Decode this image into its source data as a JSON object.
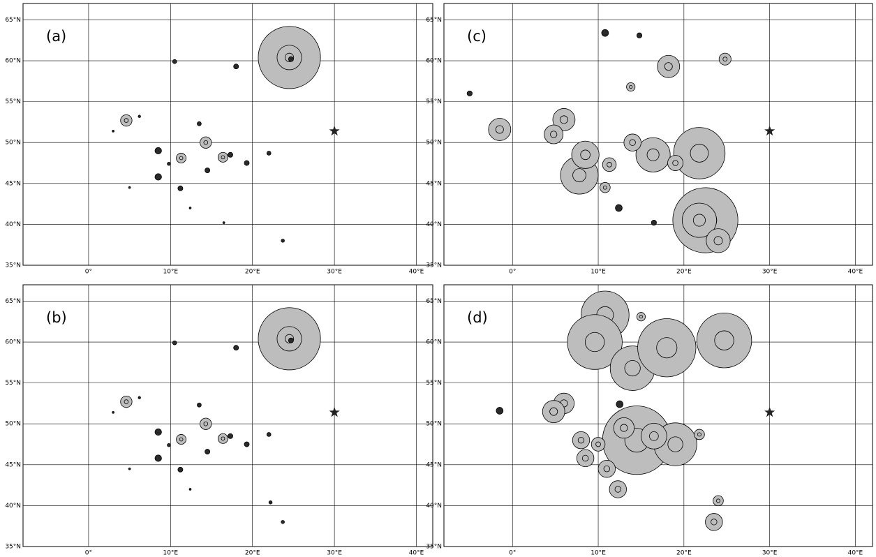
{
  "map": {
    "xlim": [
      -8,
      42
    ],
    "ylim": [
      35,
      67
    ],
    "xticks": [
      {
        "value": 0,
        "label": "0°"
      },
      {
        "value": 10,
        "label": "10°E"
      },
      {
        "value": 20,
        "label": "20°E"
      },
      {
        "value": 30,
        "label": "30°E"
      },
      {
        "value": 40,
        "label": "40°E"
      }
    ],
    "yticks": [
      {
        "value": 35,
        "label": "35°N"
      },
      {
        "value": 40,
        "label": "40°N"
      },
      {
        "value": 45,
        "label": "45°N"
      },
      {
        "value": 50,
        "label": "50°N"
      },
      {
        "value": 55,
        "label": "55°N"
      },
      {
        "value": 60,
        "label": "60°N"
      },
      {
        "value": 65,
        "label": "65°N"
      }
    ],
    "star": [
      30,
      51.4
    ]
  },
  "panels": [
    {
      "label": "(a)",
      "sites": [
        [
          24.5,
          60.4,
          3.8
        ],
        [
          24.5,
          60.4,
          1.5
        ],
        [
          24.7,
          60.2,
          0.3
        ],
        [
          14.3,
          50,
          0.7
        ],
        [
          11.3,
          48.1,
          0.6
        ],
        [
          16.4,
          48.2,
          0.6
        ],
        [
          4.6,
          52.7,
          0.7
        ],
        [
          8.5,
          49,
          0.4
        ],
        [
          8.5,
          45.8,
          0.4
        ],
        [
          18,
          59.3,
          0.3
        ],
        [
          10.5,
          59.9,
          0.25
        ],
        [
          22,
          48.7,
          0.25
        ],
        [
          23.7,
          38,
          0.2
        ],
        [
          12.4,
          42,
          0.12
        ],
        [
          19.3,
          47.5,
          0.3
        ],
        [
          14.5,
          46.6,
          0.3
        ],
        [
          17.3,
          48.5,
          0.3
        ],
        [
          11.2,
          44.4,
          0.3
        ],
        [
          13.5,
          52.3,
          0.25
        ],
        [
          9.8,
          47.4,
          0.2
        ],
        [
          6.2,
          53.2,
          0.15
        ],
        [
          3,
          51.4,
          0.12
        ],
        [
          5,
          44.5,
          0.12
        ],
        [
          16.5,
          40.2,
          0.12
        ]
      ]
    },
    {
      "label": "(c)",
      "sites": [
        [
          22.5,
          40.5,
          3.8
        ],
        [
          21.8,
          40.5,
          2.0
        ],
        [
          21.8,
          48.7,
          3.0
        ],
        [
          18.2,
          59.3,
          1.3
        ],
        [
          24.8,
          60.2,
          0.7
        ],
        [
          24,
          38,
          1.4
        ],
        [
          7.8,
          46,
          2.2
        ],
        [
          6,
          52.8,
          1.3
        ],
        [
          16.4,
          48.5,
          2.0
        ],
        [
          14,
          50,
          1.0
        ],
        [
          -1.5,
          51.6,
          1.3
        ],
        [
          4.8,
          51,
          1.1
        ],
        [
          8.5,
          48.5,
          1.6
        ],
        [
          11.3,
          47.3,
          0.8
        ],
        [
          10.8,
          44.5,
          0.6
        ],
        [
          12.4,
          42,
          0.4
        ],
        [
          19,
          47.5,
          0.9
        ],
        [
          16.5,
          40.2,
          0.3
        ],
        [
          10.8,
          63.4,
          0.4
        ],
        [
          14.8,
          63.1,
          0.3
        ],
        [
          13.8,
          56.8,
          0.5
        ],
        [
          -5,
          56,
          0.3
        ]
      ]
    },
    {
      "label": "(b)",
      "sites": [
        [
          24.5,
          60.4,
          3.8
        ],
        [
          24.5,
          60.4,
          1.5
        ],
        [
          24.7,
          60.2,
          0.3
        ],
        [
          14.3,
          50,
          0.7
        ],
        [
          11.3,
          48.1,
          0.6
        ],
        [
          16.4,
          48.2,
          0.6
        ],
        [
          4.6,
          52.7,
          0.7
        ],
        [
          8.5,
          49,
          0.4
        ],
        [
          8.5,
          45.8,
          0.4
        ],
        [
          18,
          59.3,
          0.3
        ],
        [
          10.5,
          59.9,
          0.25
        ],
        [
          22,
          48.7,
          0.25
        ],
        [
          23.7,
          38,
          0.2
        ],
        [
          12.4,
          42,
          0.12
        ],
        [
          19.3,
          47.5,
          0.3
        ],
        [
          14.5,
          46.6,
          0.3
        ],
        [
          17.3,
          48.5,
          0.3
        ],
        [
          11.2,
          44.4,
          0.3
        ],
        [
          13.5,
          52.3,
          0.25
        ],
        [
          9.8,
          47.4,
          0.2
        ],
        [
          6.2,
          53.2,
          0.15
        ],
        [
          3,
          51.4,
          0.12
        ],
        [
          5,
          44.5,
          0.12
        ],
        [
          22.2,
          40.4,
          0.2
        ]
      ]
    },
    {
      "label": "(d)",
      "sites": [
        [
          10.8,
          63.3,
          2.8
        ],
        [
          9.6,
          60,
          3.2
        ],
        [
          14,
          56.8,
          2.6
        ],
        [
          18,
          59.3,
          3.4
        ],
        [
          24.7,
          60.2,
          3.2
        ],
        [
          14.5,
          48,
          4.0
        ],
        [
          19,
          47.5,
          2.5
        ],
        [
          12.3,
          42,
          1.0
        ],
        [
          11,
          44.5,
          1.0
        ],
        [
          8.5,
          45.8,
          1.0
        ],
        [
          6,
          52.5,
          1.2
        ],
        [
          4.8,
          51.5,
          1.3
        ],
        [
          23.5,
          38,
          1.0
        ],
        [
          24,
          40.6,
          0.6
        ],
        [
          12.5,
          52.4,
          0.4
        ],
        [
          -1.5,
          51.6,
          0.4
        ],
        [
          8,
          48,
          1.0
        ],
        [
          10,
          47.5,
          0.8
        ],
        [
          21.8,
          48.7,
          0.6
        ],
        [
          16.5,
          48.5,
          1.5
        ],
        [
          13,
          49.5,
          1.2
        ],
        [
          15,
          63.1,
          0.5
        ]
      ]
    }
  ]
}
